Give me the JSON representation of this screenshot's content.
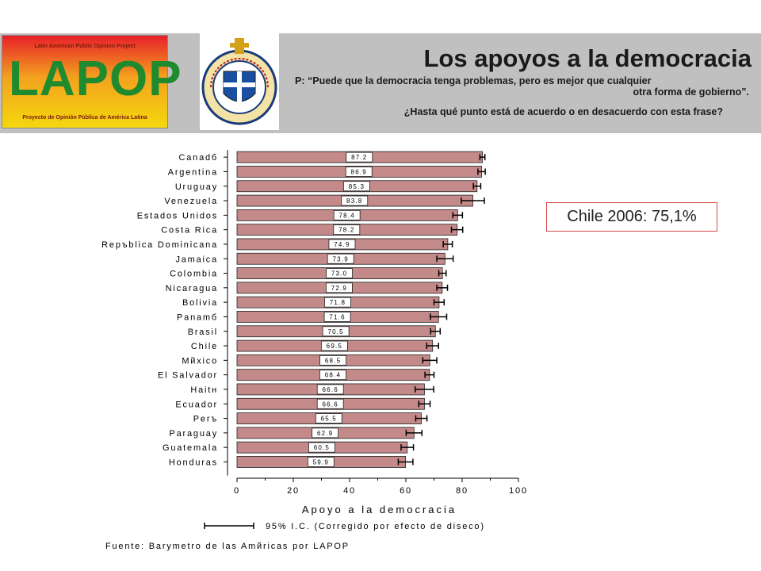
{
  "header": {
    "title": "Los apoyos a la democracia",
    "question_prefix": "P: “",
    "question_text": "Puede que la democracia tenga problemas, pero es mejor que cualquier",
    "question_line2": "otra forma de gobierno”.",
    "question_second": "¿Hasta qué punto está de acuerdo o en desacuerdo con esta frase?",
    "lapop_logo": {
      "top_text": "Latin American Public Opinion Project",
      "word": "LAPOP",
      "bottom_text": "Proyecto de Opinión Pública de América Latina"
    },
    "seal_text": "PONTIFICIA UNIVERSIDAD CATOLICA DE CHILE"
  },
  "callout": "Chile 2006: 75,1%",
  "source": "Fuente: Barymetro de las Amйricas por LAPOP",
  "colors": {
    "bar": "#c48a8a",
    "bar_stroke": "#222222",
    "header_band": "#c0c0c0",
    "callout_border": "#d94a4a"
  },
  "chart_data": {
    "type": "bar",
    "orientation": "horizontal",
    "categories": [
      "Canadб",
      "Argentina",
      "Uruguay",
      "Venezuela",
      "Estados Unidos",
      "Costa Rica",
      "Repъblica Dominicana",
      "Jamaica",
      "Colombia",
      "Nicaragua",
      "Bolivia",
      "Panamб",
      "Brasil",
      "Chile",
      "Mйxico",
      "El Salvador",
      "Haitн",
      "Ecuador",
      "Perъ",
      "Paraguay",
      "Guatemala",
      "Honduras"
    ],
    "values": [
      87.2,
      86.9,
      85.3,
      83.8,
      78.4,
      78.2,
      74.9,
      73.9,
      73.0,
      72.9,
      71.8,
      71.6,
      70.5,
      69.5,
      68.5,
      68.4,
      66.6,
      66.6,
      65.5,
      62.9,
      60.5,
      59.9
    ],
    "value_labels": [
      "87.2",
      "86.9",
      "85.3",
      "83.8",
      "78.4",
      "78.2",
      "74.9",
      "73.9",
      "73.0",
      "72.9",
      "71.8",
      "71.6",
      "70.5",
      "69.5",
      "68.5",
      "68.4",
      "66.6",
      "66.6",
      "65.5",
      "62.9",
      "60.5",
      "59.9"
    ],
    "ci_low": [
      86.3,
      85.6,
      84.0,
      79.7,
      76.7,
      76.2,
      73.3,
      71.0,
      71.7,
      71.0,
      70.0,
      68.7,
      68.8,
      67.4,
      66.0,
      66.8,
      63.3,
      64.6,
      63.5,
      60.1,
      58.3,
      57.3
    ],
    "ci_high": [
      88.1,
      88.2,
      86.6,
      87.9,
      80.1,
      80.2,
      76.5,
      76.8,
      74.3,
      74.8,
      73.6,
      74.5,
      72.2,
      71.6,
      71.0,
      70.0,
      69.9,
      68.6,
      67.5,
      65.7,
      62.7,
      62.5
    ],
    "xlim": [
      0,
      100
    ],
    "xticks": [
      "0",
      "20",
      "40",
      "60",
      "80",
      "100"
    ],
    "xlabel": "Apoyo a la democracia",
    "legend": "95% I.C. (Corregido por efecto de diseco)",
    "grid": false
  }
}
